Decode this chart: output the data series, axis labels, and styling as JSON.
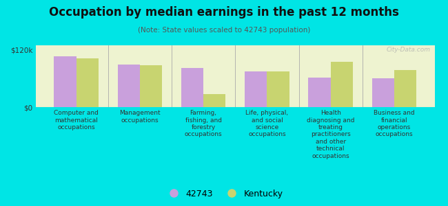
{
  "title": "Occupation by median earnings in the past 12 months",
  "subtitle": "(Note: State values scaled to 42743 population)",
  "background_color": "#00e5e5",
  "plot_bg_color": "#eef3d0",
  "categories": [
    "Computer and\nmathematical\noccupations",
    "Management\noccupations",
    "Farming,\nfishing, and\nforestry\noccupations",
    "Life, physical,\nand social\nscience\noccupations",
    "Health\ndiagnosing and\ntreating\npractitioners\nand other\ntechnical\noccupations",
    "Business and\nfinancial\noperations\noccupations"
  ],
  "values_42743": [
    107000,
    90000,
    82000,
    75000,
    62000,
    60000
  ],
  "values_kentucky": [
    102000,
    88000,
    28000,
    75000,
    95000,
    78000
  ],
  "color_42743": "#c9a0dc",
  "color_kentucky": "#c8d470",
  "ylim": [
    0,
    130000
  ],
  "yticks": [
    0,
    120000
  ],
  "ytick_labels": [
    "$0",
    "$120k"
  ],
  "legend_label_42743": "42743",
  "legend_label_kentucky": "Kentucky",
  "bar_width": 0.35,
  "watermark": "City-Data.com"
}
